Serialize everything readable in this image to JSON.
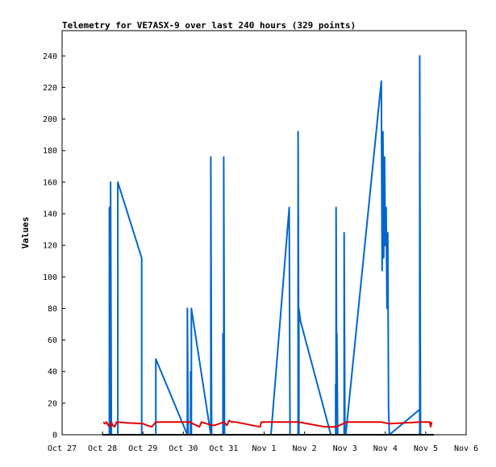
{
  "chart_data": {
    "type": "line",
    "title": "Telemetry for VE7ASX-9 over last 240 hours (329 points)",
    "xlabel": "",
    "ylabel": "Values",
    "x_axis_kind": "days since Oct 27 00:00",
    "xlim": [
      0,
      10
    ],
    "ylim": [
      0,
      256
    ],
    "x_ticks": [
      {
        "label": "Oct 27",
        "value": 0
      },
      {
        "label": "Oct 28",
        "value": 1
      },
      {
        "label": "Oct 29",
        "value": 2
      },
      {
        "label": "Oct 30",
        "value": 3
      },
      {
        "label": "Oct 31",
        "value": 4
      },
      {
        "label": "Nov 1",
        "value": 5
      },
      {
        "label": "Nov 2",
        "value": 6
      },
      {
        "label": "Nov 3",
        "value": 7
      },
      {
        "label": "Nov 4",
        "value": 8
      },
      {
        "label": "Nov 5",
        "value": 9
      },
      {
        "label": "Nov 6",
        "value": 10
      }
    ],
    "y_ticks": [
      0,
      20,
      40,
      60,
      80,
      100,
      120,
      140,
      160,
      180,
      200,
      220,
      240
    ],
    "grid": false,
    "legend": "none",
    "series": [
      {
        "color": "#0066CC",
        "points": [
          [
            1.17,
            0
          ],
          [
            1.17,
            144
          ],
          [
            1.2,
            0
          ],
          [
            1.2,
            160
          ],
          [
            1.22,
            0
          ],
          [
            1.38,
            0
          ],
          [
            1.38,
            160
          ],
          [
            1.97,
            112
          ],
          [
            1.97,
            0
          ],
          [
            2.32,
            0
          ],
          [
            2.32,
            48
          ],
          [
            3.1,
            0
          ],
          [
            3.1,
            80
          ],
          [
            3.12,
            0
          ],
          [
            3.18,
            0
          ],
          [
            3.18,
            40
          ],
          [
            3.2,
            0
          ],
          [
            3.2,
            80
          ],
          [
            3.68,
            0
          ],
          [
            3.68,
            176
          ],
          [
            3.7,
            0
          ],
          [
            3.98,
            0
          ],
          [
            3.98,
            64
          ],
          [
            4.0,
            0
          ],
          [
            4.0,
            176
          ],
          [
            4.02,
            0
          ],
          [
            5.17,
            0
          ],
          [
            5.62,
            144
          ],
          [
            5.64,
            0
          ],
          [
            5.84,
            0
          ],
          [
            5.84,
            192
          ],
          [
            5.86,
            0
          ],
          [
            5.86,
            80
          ],
          [
            5.9,
            72
          ],
          [
            6.65,
            0
          ],
          [
            6.77,
            0
          ],
          [
            6.77,
            32
          ],
          [
            6.78,
            0
          ],
          [
            6.78,
            144
          ],
          [
            6.8,
            0
          ],
          [
            6.8,
            64
          ],
          [
            6.82,
            0
          ],
          [
            6.98,
            0
          ],
          [
            6.98,
            128
          ],
          [
            7.0,
            0
          ],
          [
            7.02,
            0
          ],
          [
            7.9,
            224
          ],
          [
            7.92,
            104
          ],
          [
            7.94,
            192
          ],
          [
            7.96,
            112
          ],
          [
            7.98,
            176
          ],
          [
            8.0,
            120
          ],
          [
            8.02,
            144
          ],
          [
            8.04,
            80
          ],
          [
            8.06,
            128
          ],
          [
            8.08,
            16
          ],
          [
            8.1,
            0
          ],
          [
            8.85,
            16
          ],
          [
            8.85,
            0
          ],
          [
            8.85,
            240
          ],
          [
            8.87,
            0
          ]
        ]
      },
      {
        "color": "#E00000",
        "points": [
          [
            1.02,
            8
          ],
          [
            1.06,
            7
          ],
          [
            1.1,
            8
          ],
          [
            1.14,
            6
          ],
          [
            1.18,
            5
          ],
          [
            1.22,
            8
          ],
          [
            1.25,
            6
          ],
          [
            1.3,
            5
          ],
          [
            1.35,
            8
          ],
          [
            1.6,
            7.5
          ],
          [
            2.0,
            7
          ],
          [
            2.1,
            6
          ],
          [
            2.22,
            5
          ],
          [
            2.32,
            8
          ],
          [
            3.15,
            8
          ],
          [
            3.4,
            5
          ],
          [
            3.45,
            8
          ],
          [
            3.7,
            6
          ],
          [
            3.78,
            6
          ],
          [
            4.0,
            8
          ],
          [
            4.08,
            6
          ],
          [
            4.13,
            9
          ],
          [
            4.2,
            8
          ],
          [
            4.3,
            8
          ],
          [
            4.9,
            5
          ],
          [
            4.93,
            8
          ],
          [
            5.0,
            8
          ],
          [
            5.85,
            8
          ],
          [
            6.5,
            5
          ],
          [
            6.78,
            5
          ],
          [
            7.05,
            8
          ],
          [
            7.9,
            8
          ],
          [
            8.1,
            7
          ],
          [
            8.85,
            8
          ],
          [
            9.1,
            8
          ],
          [
            9.12,
            5
          ],
          [
            9.15,
            8
          ]
        ]
      },
      {
        "color": "#000000",
        "points": [
          [
            1.0,
            0
          ],
          [
            9.2,
            0
          ]
        ]
      }
    ]
  }
}
